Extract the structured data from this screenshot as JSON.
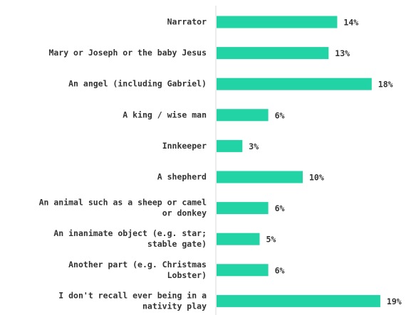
{
  "chart_data": {
    "type": "bar",
    "orientation": "horizontal",
    "categories": [
      [
        "Narrator"
      ],
      [
        "Mary or Joseph or the baby Jesus"
      ],
      [
        "An angel (including Gabriel)"
      ],
      [
        "A king / wise man"
      ],
      [
        "Innkeeper"
      ],
      [
        "A shepherd"
      ],
      [
        "An animal such as a sheep or camel",
        "or donkey"
      ],
      [
        "An inanimate object (e.g. star;",
        "stable gate)"
      ],
      [
        "Another part (e.g. Christmas",
        "Lobster)"
      ],
      [
        "I don't recall ever being in a",
        "nativity play"
      ]
    ],
    "values": [
      14,
      13,
      18,
      6,
      3,
      10,
      6,
      5,
      6,
      19
    ],
    "value_labels": [
      "14%",
      "13%",
      "18%",
      "6%",
      "3%",
      "10%",
      "6%",
      "5%",
      "6%",
      "19%"
    ],
    "xlim": [
      0,
      22
    ],
    "bar_color": "#22d3a6",
    "axis_color": "#d9d9d9",
    "grid": false,
    "legend": "none"
  }
}
